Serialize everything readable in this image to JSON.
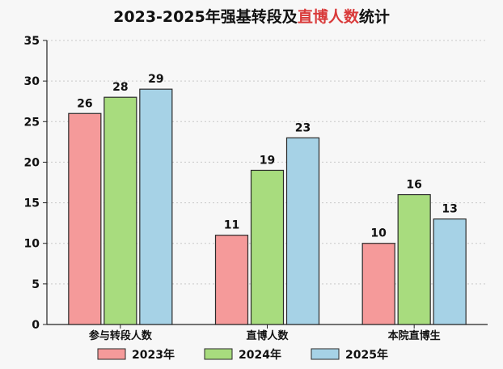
{
  "chart_data": {
    "type": "bar",
    "title_parts": [
      "2023-2025年强基转段及",
      "直博人数",
      "统计"
    ],
    "title_colors": [
      "#111111",
      "#d93a3a",
      "#111111"
    ],
    "categories": [
      "参与转段人数",
      "直博人数",
      "本院直博生"
    ],
    "series": [
      {
        "name": "2023年",
        "values": [
          26,
          11,
          10
        ],
        "color": "#f59a9a"
      },
      {
        "name": "2024年",
        "values": [
          28,
          19,
          16
        ],
        "color": "#a8dc7e"
      },
      {
        "name": "2025年",
        "values": [
          29,
          23,
          13
        ],
        "color": "#a6d2e6"
      }
    ],
    "ylim": [
      0,
      35
    ],
    "yticks": [
      0,
      5,
      10,
      15,
      20,
      25,
      30,
      35
    ],
    "grid": true,
    "legend_position": "bottom",
    "xlabel": "",
    "ylabel": ""
  }
}
